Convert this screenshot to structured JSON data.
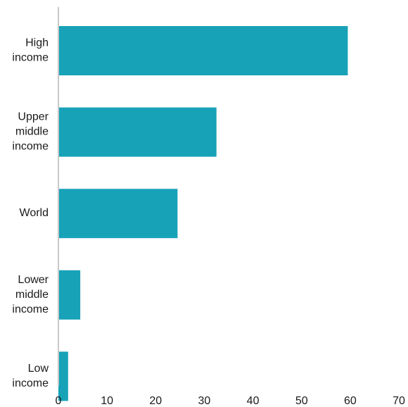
{
  "chart_data": {
    "type": "bar",
    "orientation": "horizontal",
    "categories": [
      [
        "High",
        "income"
      ],
      [
        "Upper",
        "middle",
        "income"
      ],
      [
        "World"
      ],
      [
        "Lower",
        "middle",
        "income"
      ],
      [
        "Low",
        "income"
      ]
    ],
    "values": [
      59.5,
      32.5,
      24.5,
      4.5,
      2.0
    ],
    "xlim": [
      0,
      70
    ],
    "xticks": [
      "0",
      "10",
      "20",
      "30",
      "40",
      "50",
      "60",
      "70"
    ],
    "title": "",
    "xlabel": "",
    "ylabel": "",
    "grid": false,
    "colors": {
      "bar": "#17a2b8",
      "axis": "#c8c8c8",
      "text": "#1a1a1a"
    }
  }
}
